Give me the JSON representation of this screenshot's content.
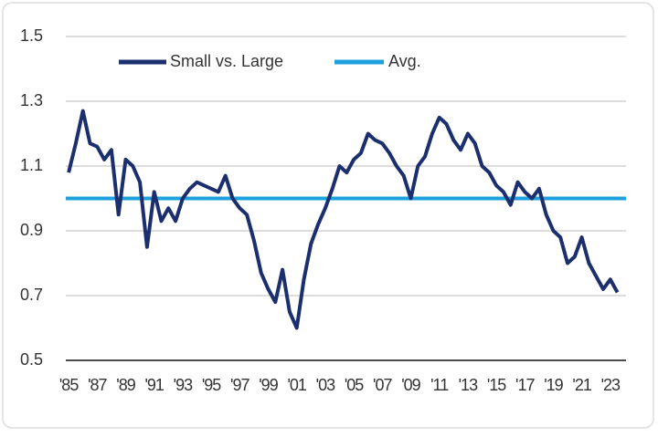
{
  "chart_data": {
    "type": "line",
    "x": [
      1985,
      1985.5,
      1986,
      1986.5,
      1987,
      1987.5,
      1988,
      1988.5,
      1989,
      1989.5,
      1990,
      1990.5,
      1991,
      1991.5,
      1992,
      1992.5,
      1993,
      1993.5,
      1994,
      1994.5,
      1995,
      1995.5,
      1996,
      1996.5,
      1997,
      1997.5,
      1998,
      1998.5,
      1999,
      1999.5,
      2000,
      2000.5,
      2001,
      2001.5,
      2002,
      2002.5,
      2003,
      2003.5,
      2004,
      2004.5,
      2005,
      2005.5,
      2006,
      2006.5,
      2007,
      2007.5,
      2008,
      2008.5,
      2009,
      2009.5,
      2010,
      2010.5,
      2011,
      2011.5,
      2012,
      2012.5,
      2013,
      2013.5,
      2014,
      2014.5,
      2015,
      2015.5,
      2016,
      2016.5,
      2017,
      2017.5,
      2018,
      2018.5,
      2019,
      2019.5,
      2020,
      2020.5,
      2021,
      2021.5,
      2022,
      2022.5,
      2023,
      2023.5
    ],
    "series": [
      {
        "name": "Small vs. Large",
        "color": "#1b2f6e",
        "values": [
          1.08,
          1.17,
          1.27,
          1.17,
          1.16,
          1.12,
          1.15,
          0.95,
          1.12,
          1.1,
          1.05,
          0.85,
          1.02,
          0.93,
          0.97,
          0.93,
          1.0,
          1.03,
          1.05,
          1.04,
          1.03,
          1.02,
          1.07,
          1.0,
          0.97,
          0.95,
          0.87,
          0.77,
          0.72,
          0.68,
          0.78,
          0.65,
          0.6,
          0.75,
          0.86,
          0.92,
          0.97,
          1.03,
          1.1,
          1.08,
          1.12,
          1.14,
          1.2,
          1.18,
          1.17,
          1.14,
          1.1,
          1.07,
          1.0,
          1.1,
          1.13,
          1.2,
          1.25,
          1.23,
          1.18,
          1.15,
          1.2,
          1.17,
          1.1,
          1.08,
          1.04,
          1.02,
          0.98,
          1.05,
          1.02,
          1.0,
          1.03,
          0.95,
          0.9,
          0.88,
          0.8,
          0.82,
          0.88,
          0.8,
          0.76,
          0.72,
          0.75,
          0.71
        ]
      }
    ],
    "average": {
      "name": "Avg.",
      "color": "#1ea0dc",
      "value": 1.0
    },
    "xlim": [
      1984.8,
      2024.1
    ],
    "ylim": [
      0.5,
      1.5
    ],
    "yticks": [
      0.5,
      0.7,
      0.9,
      1.1,
      1.3,
      1.5
    ],
    "xticks": [
      {
        "value": 1985,
        "label": "'85"
      },
      {
        "value": 1987,
        "label": "'87"
      },
      {
        "value": 1989,
        "label": "'89"
      },
      {
        "value": 1991,
        "label": "'91"
      },
      {
        "value": 1993,
        "label": "'93"
      },
      {
        "value": 1995,
        "label": "'95"
      },
      {
        "value": 1997,
        "label": "'97"
      },
      {
        "value": 1999,
        "label": "'99"
      },
      {
        "value": 2001,
        "label": "'01"
      },
      {
        "value": 2003,
        "label": "'03"
      },
      {
        "value": 2005,
        "label": "'05"
      },
      {
        "value": 2007,
        "label": "'07"
      },
      {
        "value": 2009,
        "label": "'09"
      },
      {
        "value": 2011,
        "label": "'11"
      },
      {
        "value": 2013,
        "label": "'13"
      },
      {
        "value": 2015,
        "label": "'15"
      },
      {
        "value": 2017,
        "label": "'17"
      },
      {
        "value": 2019,
        "label": "'19"
      },
      {
        "value": 2021,
        "label": "'21"
      },
      {
        "value": 2023,
        "label": "'23"
      }
    ],
    "grid": true
  }
}
